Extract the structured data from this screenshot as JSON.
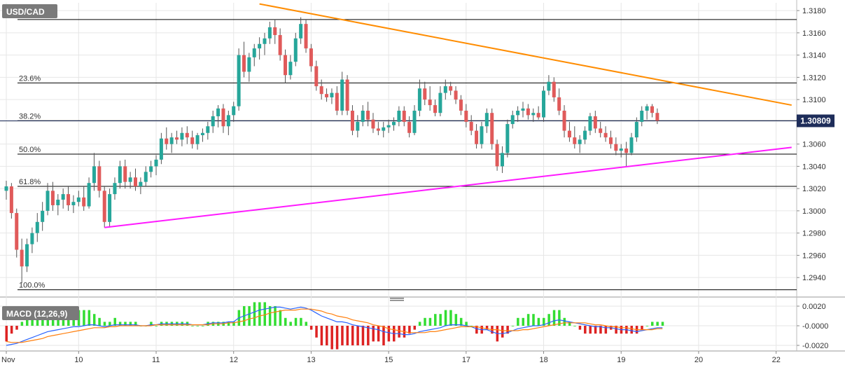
{
  "symbol": "USD/CAD",
  "last_price": "1.30809",
  "macd_label": "MACD (12,26,9)",
  "colors": {
    "bull": "#26a69a",
    "bear": "#e05a5a",
    "wick": "#555555",
    "upper_trend": "#ff8c00",
    "lower_trend": "#ff1aff",
    "fib": "#000000",
    "macd_line": "#2962ff",
    "signal_line": "#ff7f0e",
    "hist_pos": "#33dd33",
    "hist_neg": "#dd2222",
    "price_tag_bg": "#1e2d5a"
  },
  "chart_data": [
    {
      "type": "candlestick",
      "title": "USD/CAD",
      "ylim": [
        1.2925,
        1.3187
      ],
      "y_ticks": [
        "1.2940",
        "1.2960",
        "1.2980",
        "1.3000",
        "1.3020",
        "1.3040",
        "1.3060",
        "1.3080",
        "1.3100",
        "1.3120",
        "1.3140",
        "1.3160",
        "1.3180"
      ],
      "x_ticks": [
        "Nov",
        "10",
        "11",
        "12",
        "13",
        "15",
        "17",
        "18",
        "19",
        "20",
        "22"
      ],
      "x_tick_pos": [
        0,
        14,
        29,
        44,
        59,
        74,
        89,
        104,
        119,
        134,
        149
      ],
      "fib_levels": [
        {
          "label": "23.6%",
          "value": 1.3115
        },
        {
          "label": "38.2%",
          "value": 1.3081
        },
        {
          "label": "50.0%",
          "value": 1.3051
        },
        {
          "label": "61.8%",
          "value": 1.3022
        },
        {
          "label": "100.0%",
          "value": 1.2929
        }
      ],
      "top_line": 1.3172,
      "trendlines": [
        {
          "name": "resistance",
          "from": [
            49,
            1.3186
          ],
          "to": [
            152,
            1.3095
          ]
        },
        {
          "name": "support",
          "from": [
            19,
            1.2985
          ],
          "to": [
            152,
            1.3057
          ]
        }
      ],
      "candles": [
        [
          1.3018,
          1.3027,
          1.301,
          1.3022
        ],
        [
          1.3022,
          1.3025,
          1.2993,
          1.2998
        ],
        [
          1.2998,
          1.3002,
          1.2958,
          1.2965
        ],
        [
          1.2965,
          1.2975,
          1.2935,
          1.295
        ],
        [
          1.295,
          1.2975,
          1.2945,
          1.297
        ],
        [
          1.297,
          1.2985,
          1.2962,
          1.298
        ],
        [
          1.298,
          1.2998,
          1.2972,
          1.299
        ],
        [
          1.299,
          1.3008,
          1.2982,
          1.3
        ],
        [
          1.3,
          1.3025,
          1.2996,
          1.3018
        ],
        [
          1.3018,
          1.3026,
          1.3,
          1.3005
        ],
        [
          1.3005,
          1.3015,
          1.2996,
          1.301
        ],
        [
          1.301,
          1.302,
          1.3002,
          1.3015
        ],
        [
          1.3015,
          1.3022,
          1.3,
          1.3005
        ],
        [
          1.3005,
          1.3014,
          1.2998,
          1.3008
        ],
        [
          1.3008,
          1.3018,
          1.3004,
          1.3012
        ],
        [
          1.3012,
          1.3022,
          1.3,
          1.3004
        ],
        [
          1.3004,
          1.303,
          1.3002,
          1.3025
        ],
        [
          1.3025,
          1.3052,
          1.3018,
          1.304
        ],
        [
          1.304,
          1.3045,
          1.3012,
          1.3018
        ],
        [
          1.3018,
          1.3022,
          1.2985,
          1.299
        ],
        [
          1.299,
          1.302,
          1.2986,
          1.3015
        ],
        [
          1.3015,
          1.303,
          1.301,
          1.3025
        ],
        [
          1.3025,
          1.3045,
          1.302,
          1.304
        ],
        [
          1.304,
          1.3046,
          1.302,
          1.3026
        ],
        [
          1.3026,
          1.3035,
          1.302,
          1.303
        ],
        [
          1.303,
          1.3038,
          1.3018,
          1.3022
        ],
        [
          1.3022,
          1.303,
          1.3015,
          1.3026
        ],
        [
          1.3026,
          1.304,
          1.3022,
          1.3035
        ],
        [
          1.3035,
          1.3045,
          1.303,
          1.304
        ],
        [
          1.304,
          1.305,
          1.3032,
          1.3046
        ],
        [
          1.3046,
          1.307,
          1.3042,
          1.3065
        ],
        [
          1.3065,
          1.3075,
          1.3055,
          1.306
        ],
        [
          1.306,
          1.307,
          1.3052,
          1.3066
        ],
        [
          1.3066,
          1.3072,
          1.306,
          1.3064
        ],
        [
          1.3064,
          1.3075,
          1.3058,
          1.307
        ],
        [
          1.307,
          1.3076,
          1.306,
          1.3066
        ],
        [
          1.3066,
          1.3072,
          1.3056,
          1.306
        ],
        [
          1.306,
          1.307,
          1.3055,
          1.3068
        ],
        [
          1.3068,
          1.3074,
          1.3062,
          1.307
        ],
        [
          1.307,
          1.308,
          1.3064,
          1.3076
        ],
        [
          1.3076,
          1.309,
          1.307,
          1.3085
        ],
        [
          1.3085,
          1.3095,
          1.3075,
          1.3092
        ],
        [
          1.3092,
          1.3096,
          1.307,
          1.3076
        ],
        [
          1.3076,
          1.309,
          1.3068,
          1.3086
        ],
        [
          1.3086,
          1.3098,
          1.308,
          1.3094
        ],
        [
          1.3094,
          1.3146,
          1.309,
          1.314
        ],
        [
          1.314,
          1.3152,
          1.312,
          1.3125
        ],
        [
          1.3125,
          1.3142,
          1.3116,
          1.3138
        ],
        [
          1.3138,
          1.315,
          1.313,
          1.3146
        ],
        [
          1.3146,
          1.3156,
          1.3136,
          1.315
        ],
        [
          1.315,
          1.316,
          1.314,
          1.3155
        ],
        [
          1.3155,
          1.317,
          1.315,
          1.3165
        ],
        [
          1.3165,
          1.3172,
          1.315,
          1.3158
        ],
        [
          1.3158,
          1.3164,
          1.3135,
          1.314
        ],
        [
          1.314,
          1.3145,
          1.3115,
          1.3122
        ],
        [
          1.3122,
          1.314,
          1.3118,
          1.3134
        ],
        [
          1.3134,
          1.316,
          1.313,
          1.3155
        ],
        [
          1.3155,
          1.3174,
          1.315,
          1.3168
        ],
        [
          1.3168,
          1.3172,
          1.3142,
          1.3146
        ],
        [
          1.3146,
          1.315,
          1.3125,
          1.313
        ],
        [
          1.313,
          1.3135,
          1.3108,
          1.3112
        ],
        [
          1.3112,
          1.3118,
          1.31,
          1.3105
        ],
        [
          1.3105,
          1.311,
          1.3098,
          1.3102
        ],
        [
          1.3102,
          1.311,
          1.3096,
          1.3106
        ],
        [
          1.3106,
          1.3112,
          1.3086,
          1.309
        ],
        [
          1.309,
          1.3125,
          1.3086,
          1.3118
        ],
        [
          1.3118,
          1.3122,
          1.3086,
          1.309
        ],
        [
          1.309,
          1.3095,
          1.3068,
          1.3072
        ],
        [
          1.3072,
          1.3086,
          1.3066,
          1.308
        ],
        [
          1.308,
          1.3095,
          1.3076,
          1.309
        ],
        [
          1.309,
          1.3098,
          1.3076,
          1.3082
        ],
        [
          1.3082,
          1.3088,
          1.307,
          1.3074
        ],
        [
          1.3074,
          1.308,
          1.3068,
          1.3072
        ],
        [
          1.3072,
          1.308,
          1.3066,
          1.3075
        ],
        [
          1.3075,
          1.3082,
          1.307,
          1.3077
        ],
        [
          1.3077,
          1.3084,
          1.3072,
          1.308
        ],
        [
          1.308,
          1.3094,
          1.3076,
          1.309
        ],
        [
          1.309,
          1.3094,
          1.3076,
          1.308
        ],
        [
          1.308,
          1.3085,
          1.3066,
          1.307
        ],
        [
          1.307,
          1.3095,
          1.3068,
          1.309
        ],
        [
          1.309,
          1.3118,
          1.3085,
          1.311
        ],
        [
          1.311,
          1.3116,
          1.3095,
          1.31
        ],
        [
          1.31,
          1.3112,
          1.309,
          1.3095
        ],
        [
          1.3095,
          1.31,
          1.3085,
          1.3088
        ],
        [
          1.3088,
          1.3112,
          1.3085,
          1.3106
        ],
        [
          1.3106,
          1.3118,
          1.31,
          1.3112
        ],
        [
          1.3112,
          1.3116,
          1.3104,
          1.3108
        ],
        [
          1.3108,
          1.3112,
          1.3096,
          1.31
        ],
        [
          1.31,
          1.3104,
          1.3086,
          1.309
        ],
        [
          1.309,
          1.3096,
          1.3075,
          1.308
        ],
        [
          1.308,
          1.3086,
          1.3068,
          1.3072
        ],
        [
          1.3072,
          1.3078,
          1.3056,
          1.306
        ],
        [
          1.306,
          1.308,
          1.3056,
          1.3076
        ],
        [
          1.3076,
          1.3092,
          1.307,
          1.3088
        ],
        [
          1.3088,
          1.3092,
          1.3055,
          1.306
        ],
        [
          1.306,
          1.3064,
          1.3036,
          1.304
        ],
        [
          1.304,
          1.3058,
          1.3034,
          1.3052
        ],
        [
          1.3052,
          1.3082,
          1.3048,
          1.3078
        ],
        [
          1.3078,
          1.309,
          1.3074,
          1.3086
        ],
        [
          1.3086,
          1.3094,
          1.308,
          1.309
        ],
        [
          1.309,
          1.3098,
          1.3084,
          1.3092
        ],
        [
          1.3092,
          1.3096,
          1.3082,
          1.3086
        ],
        [
          1.3086,
          1.3092,
          1.308,
          1.3088
        ],
        [
          1.3088,
          1.3094,
          1.3082,
          1.3084
        ],
        [
          1.3084,
          1.3112,
          1.308,
          1.3108
        ],
        [
          1.3108,
          1.3122,
          1.3104,
          1.3116
        ],
        [
          1.3116,
          1.312,
          1.3098,
          1.3102
        ],
        [
          1.3102,
          1.311,
          1.3086,
          1.309
        ],
        [
          1.309,
          1.3095,
          1.3066,
          1.3072
        ],
        [
          1.3072,
          1.308,
          1.3062,
          1.3066
        ],
        [
          1.3066,
          1.3076,
          1.3056,
          1.306
        ],
        [
          1.306,
          1.3068,
          1.3052,
          1.3064
        ],
        [
          1.3064,
          1.3076,
          1.306,
          1.3072
        ],
        [
          1.3072,
          1.3088,
          1.3068,
          1.3085
        ],
        [
          1.3085,
          1.309,
          1.307,
          1.3074
        ],
        [
          1.3074,
          1.308,
          1.3066,
          1.307
        ],
        [
          1.307,
          1.3076,
          1.3062,
          1.3066
        ],
        [
          1.3066,
          1.3072,
          1.3056,
          1.306
        ],
        [
          1.306,
          1.3066,
          1.305,
          1.3054
        ],
        [
          1.3054,
          1.306,
          1.3048,
          1.3056
        ],
        [
          1.3056,
          1.3062,
          1.304,
          1.3052
        ],
        [
          1.3052,
          1.307,
          1.305,
          1.3066
        ],
        [
          1.3066,
          1.3084,
          1.3062,
          1.308
        ],
        [
          1.308,
          1.3094,
          1.3076,
          1.309
        ],
        [
          1.309,
          1.3096,
          1.3082,
          1.3094
        ],
        [
          1.3094,
          1.3096,
          1.3084,
          1.3088
        ],
        [
          1.3088,
          1.3092,
          1.3078,
          1.3081
        ]
      ]
    },
    {
      "type": "line",
      "title": "MACD (12,26,9)",
      "ylim": [
        -0.0025,
        0.0025
      ],
      "y_ticks": [
        "0.0020",
        "-0.0000",
        "-0.0020"
      ],
      "series": [
        {
          "name": "MACD",
          "values": [
            -0.002,
            -0.0019,
            -0.0018,
            -0.0016,
            -0.0014,
            -0.0012,
            -0.001,
            -0.0008,
            -0.0006,
            -0.0005,
            -0.0004,
            -0.0003,
            -0.0002,
            -0.0001,
            -0.0001,
            0.0,
            0.0001,
            0.0001,
            0.0,
            -0.0001,
            0.0,
            0.0001,
            0.0001,
            0.0001,
            0.0001,
            0.0001,
            0.0,
            0.0,
            0.0001,
            0.0001,
            0.0002,
            0.0002,
            0.0002,
            0.0002,
            0.0002,
            0.0002,
            0.0001,
            0.0001,
            0.0001,
            0.0002,
            0.0003,
            0.0003,
            0.0003,
            0.0004,
            0.0004,
            0.0008,
            0.001,
            0.0012,
            0.0014,
            0.0016,
            0.0017,
            0.0018,
            0.0019,
            0.0019,
            0.0018,
            0.0017,
            0.0018,
            0.0019,
            0.0018,
            0.0016,
            0.0013,
            0.001,
            0.0008,
            0.0006,
            0.0004,
            0.0004,
            0.0003,
            0.0001,
            0.0,
            -0.0001,
            -0.0002,
            -0.0003,
            -0.0004,
            -0.0006,
            -0.0007,
            -0.0008,
            -0.0008,
            -0.0009,
            -0.0009,
            -0.0008,
            -0.0006,
            -0.0005,
            -0.0004,
            -0.0003,
            -0.0002,
            0.0,
            0.0001,
            0.0001,
            0.0001,
            0.0,
            -0.0001,
            -0.0003,
            -0.0004,
            -0.0004,
            -0.0006,
            -0.0008,
            -0.0008,
            -0.0007,
            -0.0005,
            -0.0003,
            -0.0002,
            -0.0001,
            0.0,
            0.0,
            0.0001,
            0.0003,
            0.0005,
            0.0006,
            0.0005,
            0.0004,
            0.0003,
            0.0002,
            0.0001,
            0.0,
            -0.0001,
            -0.0001,
            -0.0002,
            -0.0002,
            -0.0003,
            -0.0004,
            -0.0004,
            -0.0005,
            -0.0006,
            -0.0005,
            -0.0004,
            -0.0003,
            -0.0002,
            -0.0002
          ]
        },
        {
          "name": "Signal",
          "values": [
            -0.0016,
            -0.0017,
            -0.0017,
            -0.0017,
            -0.0016,
            -0.0015,
            -0.0014,
            -0.0013,
            -0.0011,
            -0.001,
            -0.0009,
            -0.0008,
            -0.0007,
            -0.0006,
            -0.0005,
            -0.0004,
            -0.0003,
            -0.0002,
            -0.0002,
            -0.0002,
            -0.0001,
            -0.0001,
            0.0,
            0.0,
            0.0,
            0.0,
            0.0,
            0.0,
            0.0,
            0.0001,
            0.0001,
            0.0001,
            0.0001,
            0.0001,
            0.0001,
            0.0001,
            0.0001,
            0.0001,
            0.0001,
            0.0001,
            0.0002,
            0.0002,
            0.0002,
            0.0003,
            0.0003,
            0.0004,
            0.0005,
            0.0007,
            0.0008,
            0.001,
            0.0011,
            0.0013,
            0.0014,
            0.0015,
            0.0016,
            0.0016,
            0.0016,
            0.0017,
            0.0017,
            0.0017,
            0.0016,
            0.0015,
            0.0013,
            0.0012,
            0.001,
            0.0009,
            0.0008,
            0.0006,
            0.0005,
            0.0004,
            0.0003,
            0.0001,
            0.0,
            -0.0001,
            -0.0003,
            -0.0004,
            -0.0005,
            -0.0006,
            -0.0007,
            -0.0007,
            -0.0007,
            -0.0007,
            -0.0006,
            -0.0006,
            -0.0005,
            -0.0004,
            -0.0003,
            -0.0002,
            -0.0001,
            -0.0001,
            -0.0001,
            -0.0001,
            -0.0002,
            -0.0003,
            -0.0004,
            -0.0004,
            -0.0005,
            -0.0005,
            -0.0005,
            -0.0005,
            -0.0004,
            -0.0004,
            -0.0003,
            -0.0002,
            -0.0001,
            0.0,
            0.0001,
            0.0002,
            0.0003,
            0.0003,
            0.0003,
            0.0003,
            0.0003,
            0.0002,
            0.0001,
            0.0001,
            0.0,
            -0.0001,
            -0.0001,
            -0.0002,
            -0.0002,
            -0.0003,
            -0.0004,
            -0.0004,
            -0.0004,
            -0.0004,
            -0.0003,
            -0.0003
          ]
        }
      ]
    }
  ]
}
